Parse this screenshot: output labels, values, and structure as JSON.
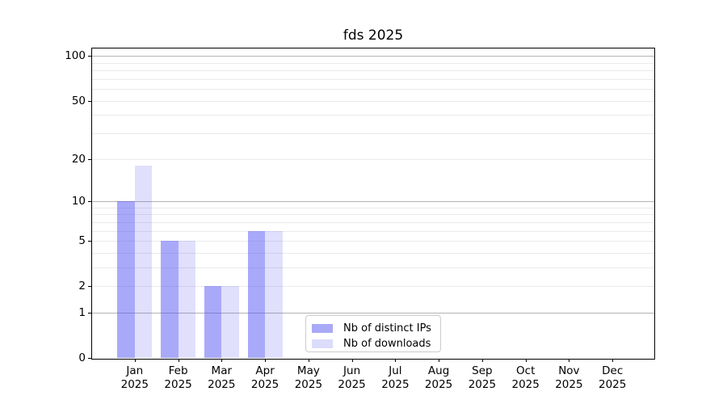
{
  "title": "fds 2025",
  "chart_data": {
    "type": "bar",
    "title": "fds 2025",
    "months": [
      "Jan",
      "Feb",
      "Mar",
      "Apr",
      "May",
      "Jun",
      "Jul",
      "Aug",
      "Sep",
      "Oct",
      "Nov",
      "Dec"
    ],
    "year": "2025",
    "categories": [
      "Jan 2025",
      "Feb 2025",
      "Mar 2025",
      "Apr 2025",
      "May 2025",
      "Jun 2025",
      "Jul 2025",
      "Aug 2025",
      "Sep 2025",
      "Oct 2025",
      "Nov 2025",
      "Dec 2025"
    ],
    "series": [
      {
        "name": "Nb of distinct IPs",
        "color": "#a9a9f8",
        "fill": "rgba(80,80,245,0.49)",
        "values": [
          10,
          5,
          2,
          6,
          0,
          0,
          0,
          0,
          0,
          0,
          0,
          0
        ]
      },
      {
        "name": "Nb of downloads",
        "color": "#dcdcfb",
        "fill": "rgba(80,80,245,0.175)",
        "values": [
          18,
          5,
          2,
          6,
          0,
          0,
          0,
          0,
          0,
          0,
          0,
          0
        ]
      }
    ],
    "yscale": "log1p",
    "ylim": [
      0,
      110
    ],
    "yticks": [
      100,
      50,
      20,
      10,
      5,
      2,
      1,
      0
    ],
    "major_gridlines": [
      1,
      10,
      100
    ],
    "minor_gridlines": [
      2,
      3,
      4,
      5,
      6,
      7,
      8,
      9,
      20,
      30,
      40,
      50,
      60,
      70,
      80,
      90
    ],
    "grid": true,
    "legend_position": "lower center"
  },
  "colors": {
    "major_grid": "#b3b3b3",
    "minor_grid": "#eaeaea",
    "axis": "#000000",
    "legend_border": "#cccccc",
    "text": "#000000"
  }
}
